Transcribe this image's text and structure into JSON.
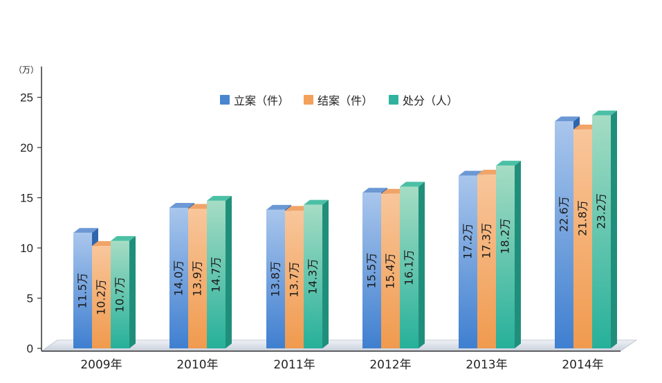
{
  "chart_data": {
    "type": "bar",
    "unit_label": "（万）",
    "categories": [
      "2009年",
      "2010年",
      "2011年",
      "2012年",
      "2013年",
      "2014年"
    ],
    "series": [
      {
        "name": "立案（件）",
        "values": [
          11.5,
          14.0,
          13.8,
          15.5,
          17.2,
          22.6
        ],
        "labels": [
          "11.5万",
          "14.0万",
          "13.8万",
          "15.5万",
          "17.2万",
          "22.6万"
        ],
        "color": "#4a86cf"
      },
      {
        "name": "结案（件）",
        "values": [
          10.2,
          13.9,
          13.7,
          15.4,
          17.3,
          21.8
        ],
        "labels": [
          "10.2万",
          "13.9万",
          "13.7万",
          "15.4万",
          "17.3万",
          "21.8万"
        ],
        "color": "#f4a15c"
      },
      {
        "name": "处分（人）",
        "values": [
          10.7,
          14.7,
          14.3,
          16.1,
          18.2,
          23.2
        ],
        "labels": [
          "10.7万",
          "14.7万",
          "14.3万",
          "16.1万",
          "18.2万",
          "23.2万"
        ],
        "color": "#2fb39f"
      }
    ],
    "yticks": [
      "0",
      "5",
      "10",
      "15",
      "20",
      "25"
    ],
    "ylim": [
      0,
      25
    ],
    "legend_position": "top-center",
    "style": "3d-bar"
  }
}
